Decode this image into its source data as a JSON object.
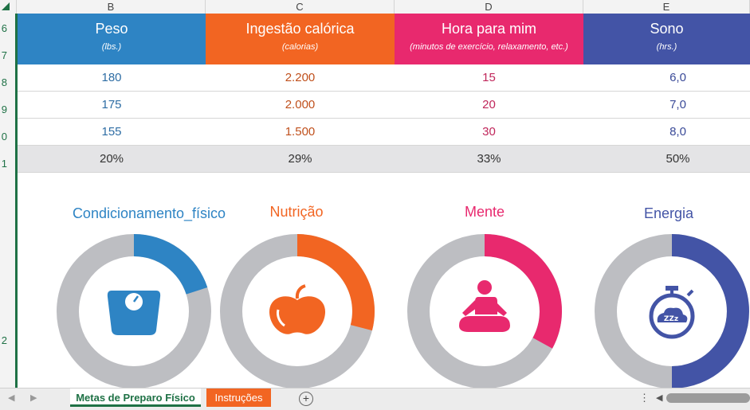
{
  "columns": [
    {
      "letter": "B"
    },
    {
      "letter": "C"
    },
    {
      "letter": "D"
    },
    {
      "letter": "E"
    }
  ],
  "rows": [
    "6",
    "7",
    "8",
    "9",
    "0",
    "1",
    "2"
  ],
  "headers": [
    {
      "title": "Peso",
      "sub": "(lbs.)",
      "color": "#2e84c4"
    },
    {
      "title": "Ingestão calórica",
      "sub": "(calorias)",
      "color": "#f26522"
    },
    {
      "title": "Hora para mim",
      "sub": "(minutos de exercício, relaxamento, etc.)",
      "color": "#e8296e"
    },
    {
      "title": "Sono",
      "sub": "(hrs.)",
      "color": "#4354a6"
    }
  ],
  "data_rows": [
    [
      "180",
      "2.200",
      "15",
      "6,0"
    ],
    [
      "175",
      "2.000",
      "20",
      "7,0"
    ],
    [
      "155",
      "1.500",
      "30",
      "8,0"
    ]
  ],
  "percent_row": [
    "20%",
    "29%",
    "33%",
    "50%"
  ],
  "dashboard": [
    {
      "title": "Condicionamento_físico",
      "fraction": 0.2,
      "color": "#2e84c4",
      "icon": "scale-icon"
    },
    {
      "title": "Nutrição",
      "fraction": 0.29,
      "color": "#f26522",
      "icon": "apple-icon"
    },
    {
      "title": "Mente",
      "fraction": 0.33,
      "color": "#e8296e",
      "icon": "meditation-icon"
    },
    {
      "title": "Energia",
      "fraction": 0.5,
      "color": "#4354a6",
      "icon": "stopwatch-sleep-icon"
    }
  ],
  "tabs": {
    "active": "Metas de Preparo Físico",
    "other": "Instruções"
  },
  "data_text_colors": [
    "#2e6da4",
    "#c0501c",
    "#c0265a",
    "#3a4a98"
  ]
}
